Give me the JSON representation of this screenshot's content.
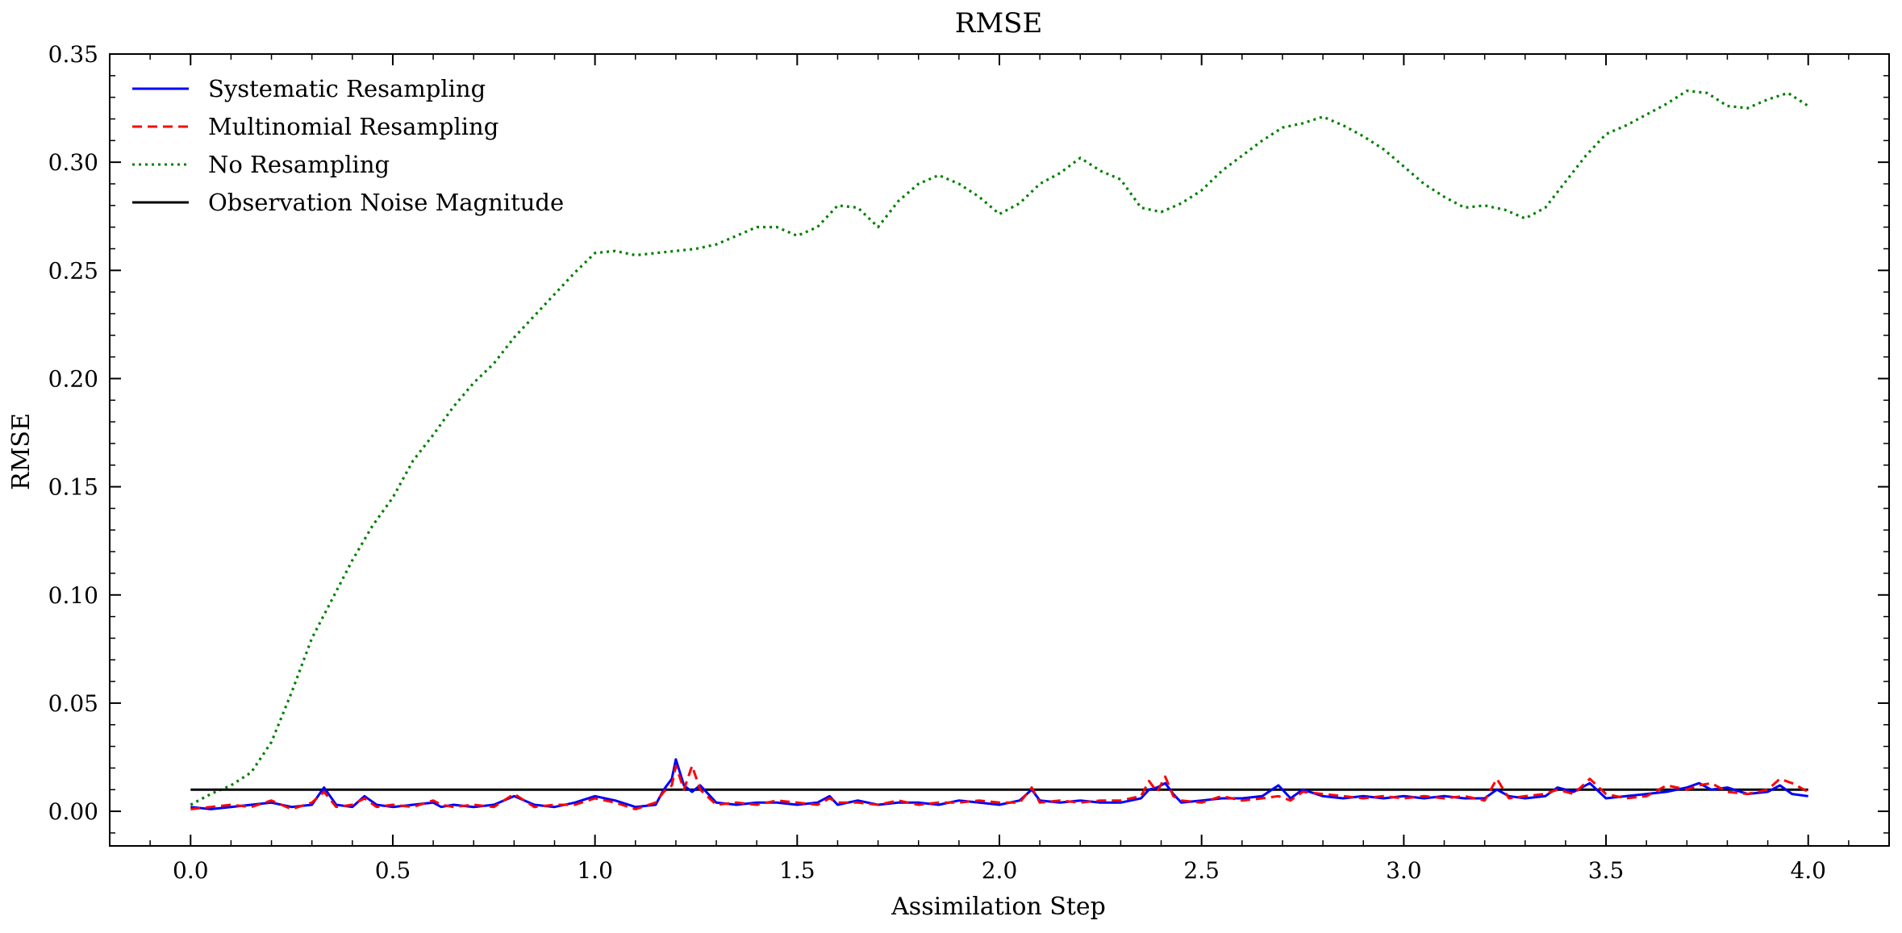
{
  "chart_data": {
    "type": "line",
    "title": "RMSE",
    "xlabel": "Assimilation Step",
    "ylabel": "RMSE",
    "xlim": [
      -0.2,
      4.2
    ],
    "ylim": [
      -0.016,
      0.35
    ],
    "xticks": [
      0.0,
      0.5,
      1.0,
      1.5,
      2.0,
      2.5,
      3.0,
      3.5,
      4.0
    ],
    "xtick_labels": [
      "0.0",
      "0.5",
      "1.0",
      "1.5",
      "2.0",
      "2.5",
      "3.0",
      "3.5",
      "4.0"
    ],
    "yticks": [
      0.0,
      0.05,
      0.1,
      0.15,
      0.2,
      0.25,
      0.3,
      0.35
    ],
    "ytick_labels": [
      "0.00",
      "0.05",
      "0.10",
      "0.15",
      "0.20",
      "0.25",
      "0.30",
      "0.35"
    ],
    "grid": false,
    "legend_position": "top-left",
    "series": [
      {
        "name": "Systematic Resampling",
        "color": "#0000ff",
        "style": "solid",
        "x": [
          0.0,
          0.05,
          0.1,
          0.15,
          0.2,
          0.25,
          0.3,
          0.33,
          0.36,
          0.4,
          0.43,
          0.46,
          0.5,
          0.55,
          0.6,
          0.62,
          0.65,
          0.7,
          0.75,
          0.8,
          0.85,
          0.9,
          0.95,
          1.0,
          1.05,
          1.1,
          1.15,
          1.17,
          1.19,
          1.2,
          1.22,
          1.24,
          1.26,
          1.3,
          1.35,
          1.4,
          1.45,
          1.5,
          1.55,
          1.58,
          1.6,
          1.65,
          1.7,
          1.75,
          1.8,
          1.85,
          1.9,
          1.95,
          2.0,
          2.05,
          2.08,
          2.1,
          2.15,
          2.2,
          2.25,
          2.3,
          2.35,
          2.37,
          2.39,
          2.41,
          2.43,
          2.45,
          2.5,
          2.55,
          2.6,
          2.65,
          2.69,
          2.72,
          2.75,
          2.8,
          2.85,
          2.9,
          2.95,
          3.0,
          3.05,
          3.1,
          3.15,
          3.2,
          3.23,
          3.26,
          3.3,
          3.35,
          3.38,
          3.42,
          3.46,
          3.5,
          3.55,
          3.6,
          3.65,
          3.7,
          3.73,
          3.76,
          3.8,
          3.85,
          3.9,
          3.93,
          3.96,
          4.0
        ],
        "y": [
          0.002,
          0.001,
          0.002,
          0.003,
          0.004,
          0.002,
          0.003,
          0.011,
          0.003,
          0.002,
          0.007,
          0.003,
          0.002,
          0.003,
          0.004,
          0.002,
          0.003,
          0.002,
          0.003,
          0.007,
          0.003,
          0.002,
          0.004,
          0.007,
          0.005,
          0.002,
          0.003,
          0.01,
          0.015,
          0.024,
          0.012,
          0.009,
          0.012,
          0.004,
          0.003,
          0.004,
          0.004,
          0.003,
          0.004,
          0.007,
          0.003,
          0.005,
          0.003,
          0.004,
          0.004,
          0.003,
          0.005,
          0.004,
          0.003,
          0.005,
          0.01,
          0.005,
          0.004,
          0.005,
          0.004,
          0.004,
          0.006,
          0.01,
          0.011,
          0.013,
          0.008,
          0.004,
          0.005,
          0.006,
          0.006,
          0.007,
          0.012,
          0.006,
          0.01,
          0.007,
          0.006,
          0.007,
          0.006,
          0.007,
          0.006,
          0.007,
          0.006,
          0.006,
          0.01,
          0.007,
          0.006,
          0.007,
          0.011,
          0.009,
          0.013,
          0.006,
          0.007,
          0.008,
          0.009,
          0.011,
          0.013,
          0.01,
          0.011,
          0.008,
          0.009,
          0.012,
          0.008,
          0.007
        ]
      },
      {
        "name": "Multinomial Resampling",
        "color": "#ff0000",
        "style": "dashed",
        "x": [
          0.0,
          0.05,
          0.1,
          0.15,
          0.2,
          0.25,
          0.3,
          0.33,
          0.36,
          0.4,
          0.43,
          0.46,
          0.5,
          0.55,
          0.6,
          0.62,
          0.65,
          0.7,
          0.75,
          0.8,
          0.85,
          0.9,
          0.95,
          1.0,
          1.05,
          1.1,
          1.15,
          1.17,
          1.19,
          1.2,
          1.22,
          1.24,
          1.26,
          1.3,
          1.35,
          1.4,
          1.45,
          1.5,
          1.55,
          1.58,
          1.6,
          1.65,
          1.7,
          1.75,
          1.8,
          1.85,
          1.9,
          1.95,
          2.0,
          2.05,
          2.08,
          2.1,
          2.15,
          2.2,
          2.25,
          2.3,
          2.35,
          2.37,
          2.39,
          2.41,
          2.43,
          2.45,
          2.5,
          2.55,
          2.6,
          2.65,
          2.69,
          2.72,
          2.75,
          2.8,
          2.85,
          2.9,
          2.95,
          3.0,
          3.05,
          3.1,
          3.15,
          3.2,
          3.23,
          3.26,
          3.3,
          3.35,
          3.38,
          3.42,
          3.46,
          3.5,
          3.55,
          3.6,
          3.65,
          3.7,
          3.73,
          3.76,
          3.8,
          3.85,
          3.9,
          3.93,
          3.96,
          4.0
        ],
        "y": [
          0.001,
          0.002,
          0.003,
          0.002,
          0.005,
          0.001,
          0.004,
          0.009,
          0.002,
          0.003,
          0.006,
          0.002,
          0.003,
          0.002,
          0.005,
          0.003,
          0.002,
          0.003,
          0.002,
          0.008,
          0.002,
          0.003,
          0.003,
          0.006,
          0.004,
          0.001,
          0.004,
          0.009,
          0.012,
          0.021,
          0.01,
          0.021,
          0.01,
          0.003,
          0.004,
          0.003,
          0.005,
          0.004,
          0.003,
          0.006,
          0.004,
          0.004,
          0.003,
          0.005,
          0.003,
          0.004,
          0.004,
          0.005,
          0.004,
          0.004,
          0.011,
          0.004,
          0.005,
          0.004,
          0.005,
          0.005,
          0.007,
          0.014,
          0.009,
          0.016,
          0.007,
          0.005,
          0.004,
          0.007,
          0.005,
          0.006,
          0.007,
          0.005,
          0.009,
          0.008,
          0.007,
          0.006,
          0.007,
          0.006,
          0.007,
          0.006,
          0.007,
          0.005,
          0.015,
          0.006,
          0.007,
          0.008,
          0.01,
          0.008,
          0.015,
          0.008,
          0.006,
          0.007,
          0.012,
          0.01,
          0.012,
          0.013,
          0.009,
          0.008,
          0.01,
          0.015,
          0.013,
          0.009
        ]
      },
      {
        "name": "No Resampling",
        "color": "#008000",
        "style": "dotted",
        "x": [
          0.0,
          0.05,
          0.1,
          0.15,
          0.2,
          0.25,
          0.3,
          0.35,
          0.4,
          0.45,
          0.5,
          0.55,
          0.6,
          0.65,
          0.7,
          0.75,
          0.8,
          0.85,
          0.9,
          0.95,
          1.0,
          1.05,
          1.1,
          1.15,
          1.2,
          1.25,
          1.3,
          1.35,
          1.4,
          1.45,
          1.5,
          1.55,
          1.6,
          1.65,
          1.7,
          1.75,
          1.8,
          1.85,
          1.9,
          1.95,
          2.0,
          2.05,
          2.1,
          2.15,
          2.2,
          2.25,
          2.3,
          2.35,
          2.4,
          2.45,
          2.5,
          2.55,
          2.6,
          2.65,
          2.7,
          2.75,
          2.8,
          2.85,
          2.9,
          2.95,
          3.0,
          3.05,
          3.1,
          3.15,
          3.2,
          3.25,
          3.3,
          3.35,
          3.4,
          3.45,
          3.5,
          3.55,
          3.6,
          3.65,
          3.7,
          3.75,
          3.8,
          3.85,
          3.9,
          3.95,
          4.0
        ],
        "y": [
          0.003,
          0.008,
          0.012,
          0.018,
          0.032,
          0.055,
          0.08,
          0.098,
          0.116,
          0.132,
          0.145,
          0.162,
          0.174,
          0.187,
          0.198,
          0.207,
          0.219,
          0.229,
          0.239,
          0.249,
          0.258,
          0.259,
          0.257,
          0.258,
          0.259,
          0.26,
          0.262,
          0.266,
          0.27,
          0.27,
          0.266,
          0.27,
          0.28,
          0.279,
          0.27,
          0.282,
          0.29,
          0.294,
          0.29,
          0.284,
          0.276,
          0.281,
          0.29,
          0.295,
          0.302,
          0.296,
          0.292,
          0.279,
          0.277,
          0.281,
          0.287,
          0.296,
          0.303,
          0.31,
          0.316,
          0.318,
          0.321,
          0.317,
          0.312,
          0.306,
          0.298,
          0.29,
          0.284,
          0.279,
          0.28,
          0.278,
          0.274,
          0.279,
          0.291,
          0.303,
          0.313,
          0.317,
          0.322,
          0.327,
          0.333,
          0.332,
          0.326,
          0.325,
          0.329,
          0.332,
          0.326
        ]
      },
      {
        "name": "Observation Noise Magnitude",
        "color": "#000000",
        "style": "solid",
        "x": [
          0.0,
          4.0
        ],
        "y": [
          0.01,
          0.01
        ]
      }
    ]
  }
}
